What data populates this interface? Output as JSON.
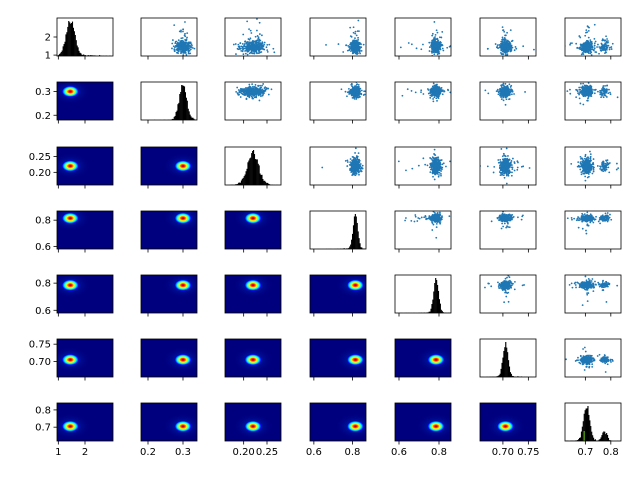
{
  "figure": {
    "type": "corner-pairplot",
    "n_vars": 7,
    "colors": {
      "scatter": "#1f77b4",
      "hist": "#000000",
      "kde_background": "#00007f",
      "kde_colormap": [
        "#00007f",
        "#0000ff",
        "#007fff",
        "#00ffff",
        "#7fff7f",
        "#ffff00",
        "#ff7f00",
        "#ff0000",
        "#7f0000"
      ],
      "green_accent": "#7cfc00"
    }
  },
  "chart_data": {
    "type": "pairplot",
    "variables": [
      {
        "range": [
          0.95,
          3.05
        ],
        "center": 1.45,
        "sd": 0.16,
        "tail": 0.7
      },
      {
        "range": [
          0.18,
          0.34
        ],
        "center": 0.3,
        "sd": 0.01,
        "tail": 0.025
      },
      {
        "range": [
          0.16,
          0.28
        ],
        "center": 0.22,
        "sd": 0.012,
        "tail": 0.02
      },
      {
        "range": [
          0.58,
          0.87
        ],
        "center": 0.815,
        "sd": 0.012,
        "tail": 0.06
      },
      {
        "range": [
          0.58,
          0.86
        ],
        "center": 0.785,
        "sd": 0.012,
        "tail": 0.08
      },
      {
        "range": [
          0.655,
          0.765
        ],
        "center": 0.705,
        "sd": 0.005,
        "tail": 0.02
      },
      {
        "range": [
          0.62,
          0.84
        ],
        "center": 0.705,
        "sd": 0.012,
        "tail": 0.06
      }
    ],
    "y_ticks": [
      {
        "values": [
          1,
          2
        ],
        "labels": [
          "1",
          "2"
        ]
      },
      {
        "values": [
          0.2,
          0.3
        ],
        "labels": [
          "0.2",
          "0.3"
        ]
      },
      {
        "values": [
          0.2,
          0.25
        ],
        "labels": [
          "0.20",
          "0.25"
        ]
      },
      {
        "values": [
          0.6,
          0.8
        ],
        "labels": [
          "0.6",
          "0.8"
        ]
      },
      {
        "values": [
          0.6,
          0.8
        ],
        "labels": [
          "0.6",
          "0.8"
        ]
      },
      {
        "values": [
          0.7,
          0.75
        ],
        "labels": [
          "0.70",
          "0.75"
        ]
      },
      {
        "values": [
          0.7,
          0.8
        ],
        "labels": [
          "0.7",
          "0.8"
        ]
      }
    ],
    "x_ticks": [
      {
        "values": [
          1,
          2
        ],
        "labels": [
          "1",
          "2"
        ]
      },
      {
        "values": [
          0.2,
          0.3
        ],
        "labels": [
          "0.2",
          "0.3"
        ]
      },
      {
        "values": [
          0.2,
          0.25
        ],
        "labels": [
          "0.20",
          "0.25"
        ]
      },
      {
        "values": [
          0.6,
          0.8
        ],
        "labels": [
          "0.6",
          "0.8"
        ]
      },
      {
        "values": [
          0.6,
          0.8
        ],
        "labels": [
          "0.6",
          "0.8"
        ]
      },
      {
        "values": [
          0.7,
          0.75
        ],
        "labels": [
          "0.70",
          "0.75"
        ]
      },
      {
        "values": [
          0.7,
          0.8
        ],
        "labels": [
          "0.7",
          "0.8"
        ]
      }
    ],
    "diagonal": "histogram",
    "upper_triangle": "scatter",
    "lower_triangle": "kde-density",
    "secondary_modes": [
      {
        "var": 6,
        "center": 0.775,
        "weight": 0.18
      }
    ]
  }
}
